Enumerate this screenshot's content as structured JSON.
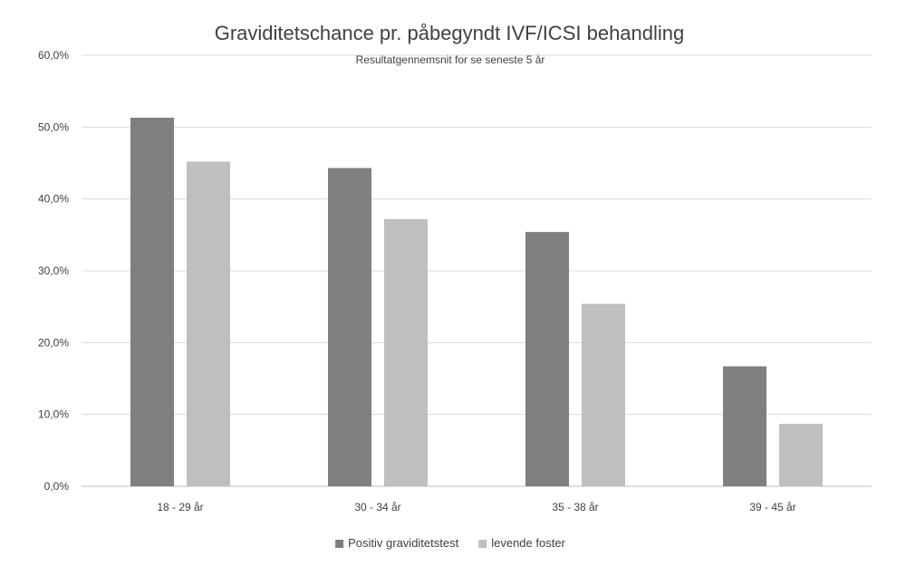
{
  "chart_data": {
    "type": "bar",
    "title": "Graviditetschance pr. påbegyndt IVF/ICSI behandling",
    "subtitle": "Resultatgennemsnit for se seneste 5 år",
    "categories": [
      "18 - 29 år",
      "30 -  34 år",
      "35 - 38 år",
      "39 - 45 år"
    ],
    "series": [
      {
        "name": "Positiv graviditetstest",
        "values": [
          51.3,
          44.3,
          35.4,
          16.7
        ],
        "color": "#7f7f7f"
      },
      {
        "name": "levende foster",
        "values": [
          45.2,
          37.2,
          25.4,
          8.7
        ],
        "color": "#bfbfbf"
      }
    ],
    "ylim": [
      0,
      60
    ],
    "yticks": [
      "0,0%",
      "10,0%",
      "20,0%",
      "30,0%",
      "40,0%",
      "50,0%",
      "60,0%"
    ],
    "grid": true,
    "legend_position": "bottom"
  }
}
